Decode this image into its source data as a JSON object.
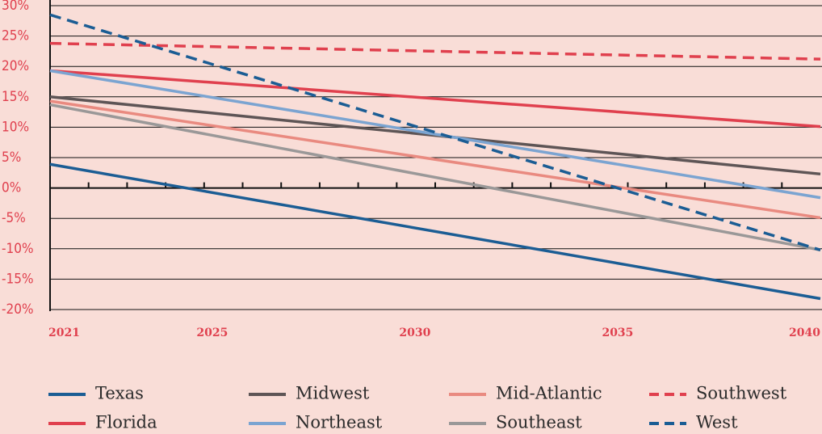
{
  "chart_data": {
    "type": "line",
    "x": [
      2021,
      2040
    ],
    "xlim": [
      2021,
      2040
    ],
    "xticks": [
      2021,
      2025,
      2030,
      2035,
      2040
    ],
    "ylim": [
      -20,
      30
    ],
    "yticks": [
      {
        "value": -20,
        "label": "-20%"
      },
      {
        "value": -15,
        "label": "-15%"
      },
      {
        "value": -10,
        "label": "-10%"
      },
      {
        "value": -5,
        "label": "-5%"
      },
      {
        "value": 0,
        "label": "0%"
      },
      {
        "value": 5,
        "label": "5%"
      },
      {
        "value": 10,
        "label": "10%"
      },
      {
        "value": 15,
        "label": "15%"
      },
      {
        "value": 20,
        "label": "20%"
      },
      {
        "value": 25,
        "label": "25%"
      },
      {
        "value": 30,
        "label": "30%"
      }
    ],
    "grid": true,
    "series": [
      {
        "name": "Texas",
        "color": "#1b5d94",
        "dashed": false,
        "values": [
          3.9,
          -18.2
        ]
      },
      {
        "name": "Midwest",
        "color": "#5e5556",
        "dashed": false,
        "values": [
          15,
          2.3
        ]
      },
      {
        "name": "Mid-Atlantic",
        "color": "#e98a80",
        "dashed": false,
        "values": [
          14.3,
          -4.9
        ]
      },
      {
        "name": "Southwest",
        "color": "#e0404e",
        "dashed": true,
        "values": [
          23.8,
          21.2
        ]
      },
      {
        "name": "Florida",
        "color": "#e0404e",
        "dashed": false,
        "values": [
          19.3,
          10.1
        ]
      },
      {
        "name": "Northeast",
        "color": "#7ba4d1",
        "dashed": false,
        "values": [
          19.3,
          -1.6
        ]
      },
      {
        "name": "Southeast",
        "color": "#9a9898",
        "dashed": false,
        "values": [
          13.7,
          -10.2
        ]
      },
      {
        "name": "West",
        "color": "#1b5d94",
        "dashed": true,
        "values": [
          28.5,
          -10.2
        ]
      }
    ]
  }
}
